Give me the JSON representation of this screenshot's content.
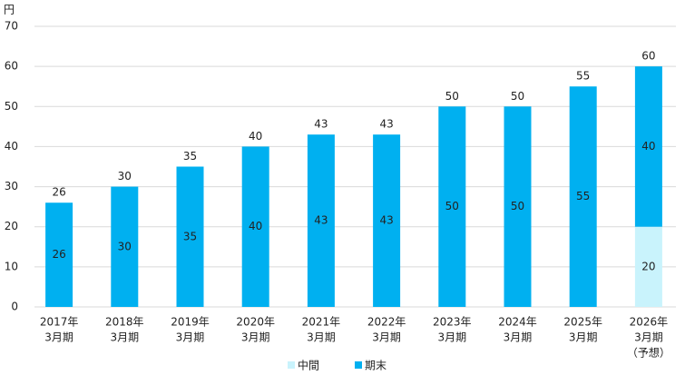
{
  "chart_data": {
    "type": "stacked-bar",
    "y_unit": "円",
    "categories": [
      [
        "2017年",
        "3月期"
      ],
      [
        "2018年",
        "3月期"
      ],
      [
        "2019年",
        "3月期"
      ],
      [
        "2020年",
        "3月期"
      ],
      [
        "2021年",
        "3月期"
      ],
      [
        "2022年",
        "3月期"
      ],
      [
        "2023年",
        "3月期"
      ],
      [
        "2024年",
        "3月期"
      ],
      [
        "2025年",
        "3月期"
      ],
      [
        "2026年",
        "3月期",
        "（予想）"
      ]
    ],
    "series": [
      {
        "name": "中間",
        "color": "#c9f3fc",
        "values": [
          null,
          null,
          null,
          null,
          null,
          null,
          null,
          null,
          null,
          20
        ]
      },
      {
        "name": "期末",
        "color": "#00b0f0",
        "values": [
          26,
          30,
          35,
          40,
          43,
          43,
          50,
          50,
          55,
          40
        ]
      }
    ],
    "totals": [
      26,
      30,
      35,
      40,
      43,
      43,
      50,
      50,
      55,
      60
    ],
    "ylim": [
      0,
      70
    ],
    "yticks": [
      0,
      10,
      20,
      30,
      40,
      50,
      60,
      70
    ],
    "grid": true,
    "legend": "bottom"
  }
}
